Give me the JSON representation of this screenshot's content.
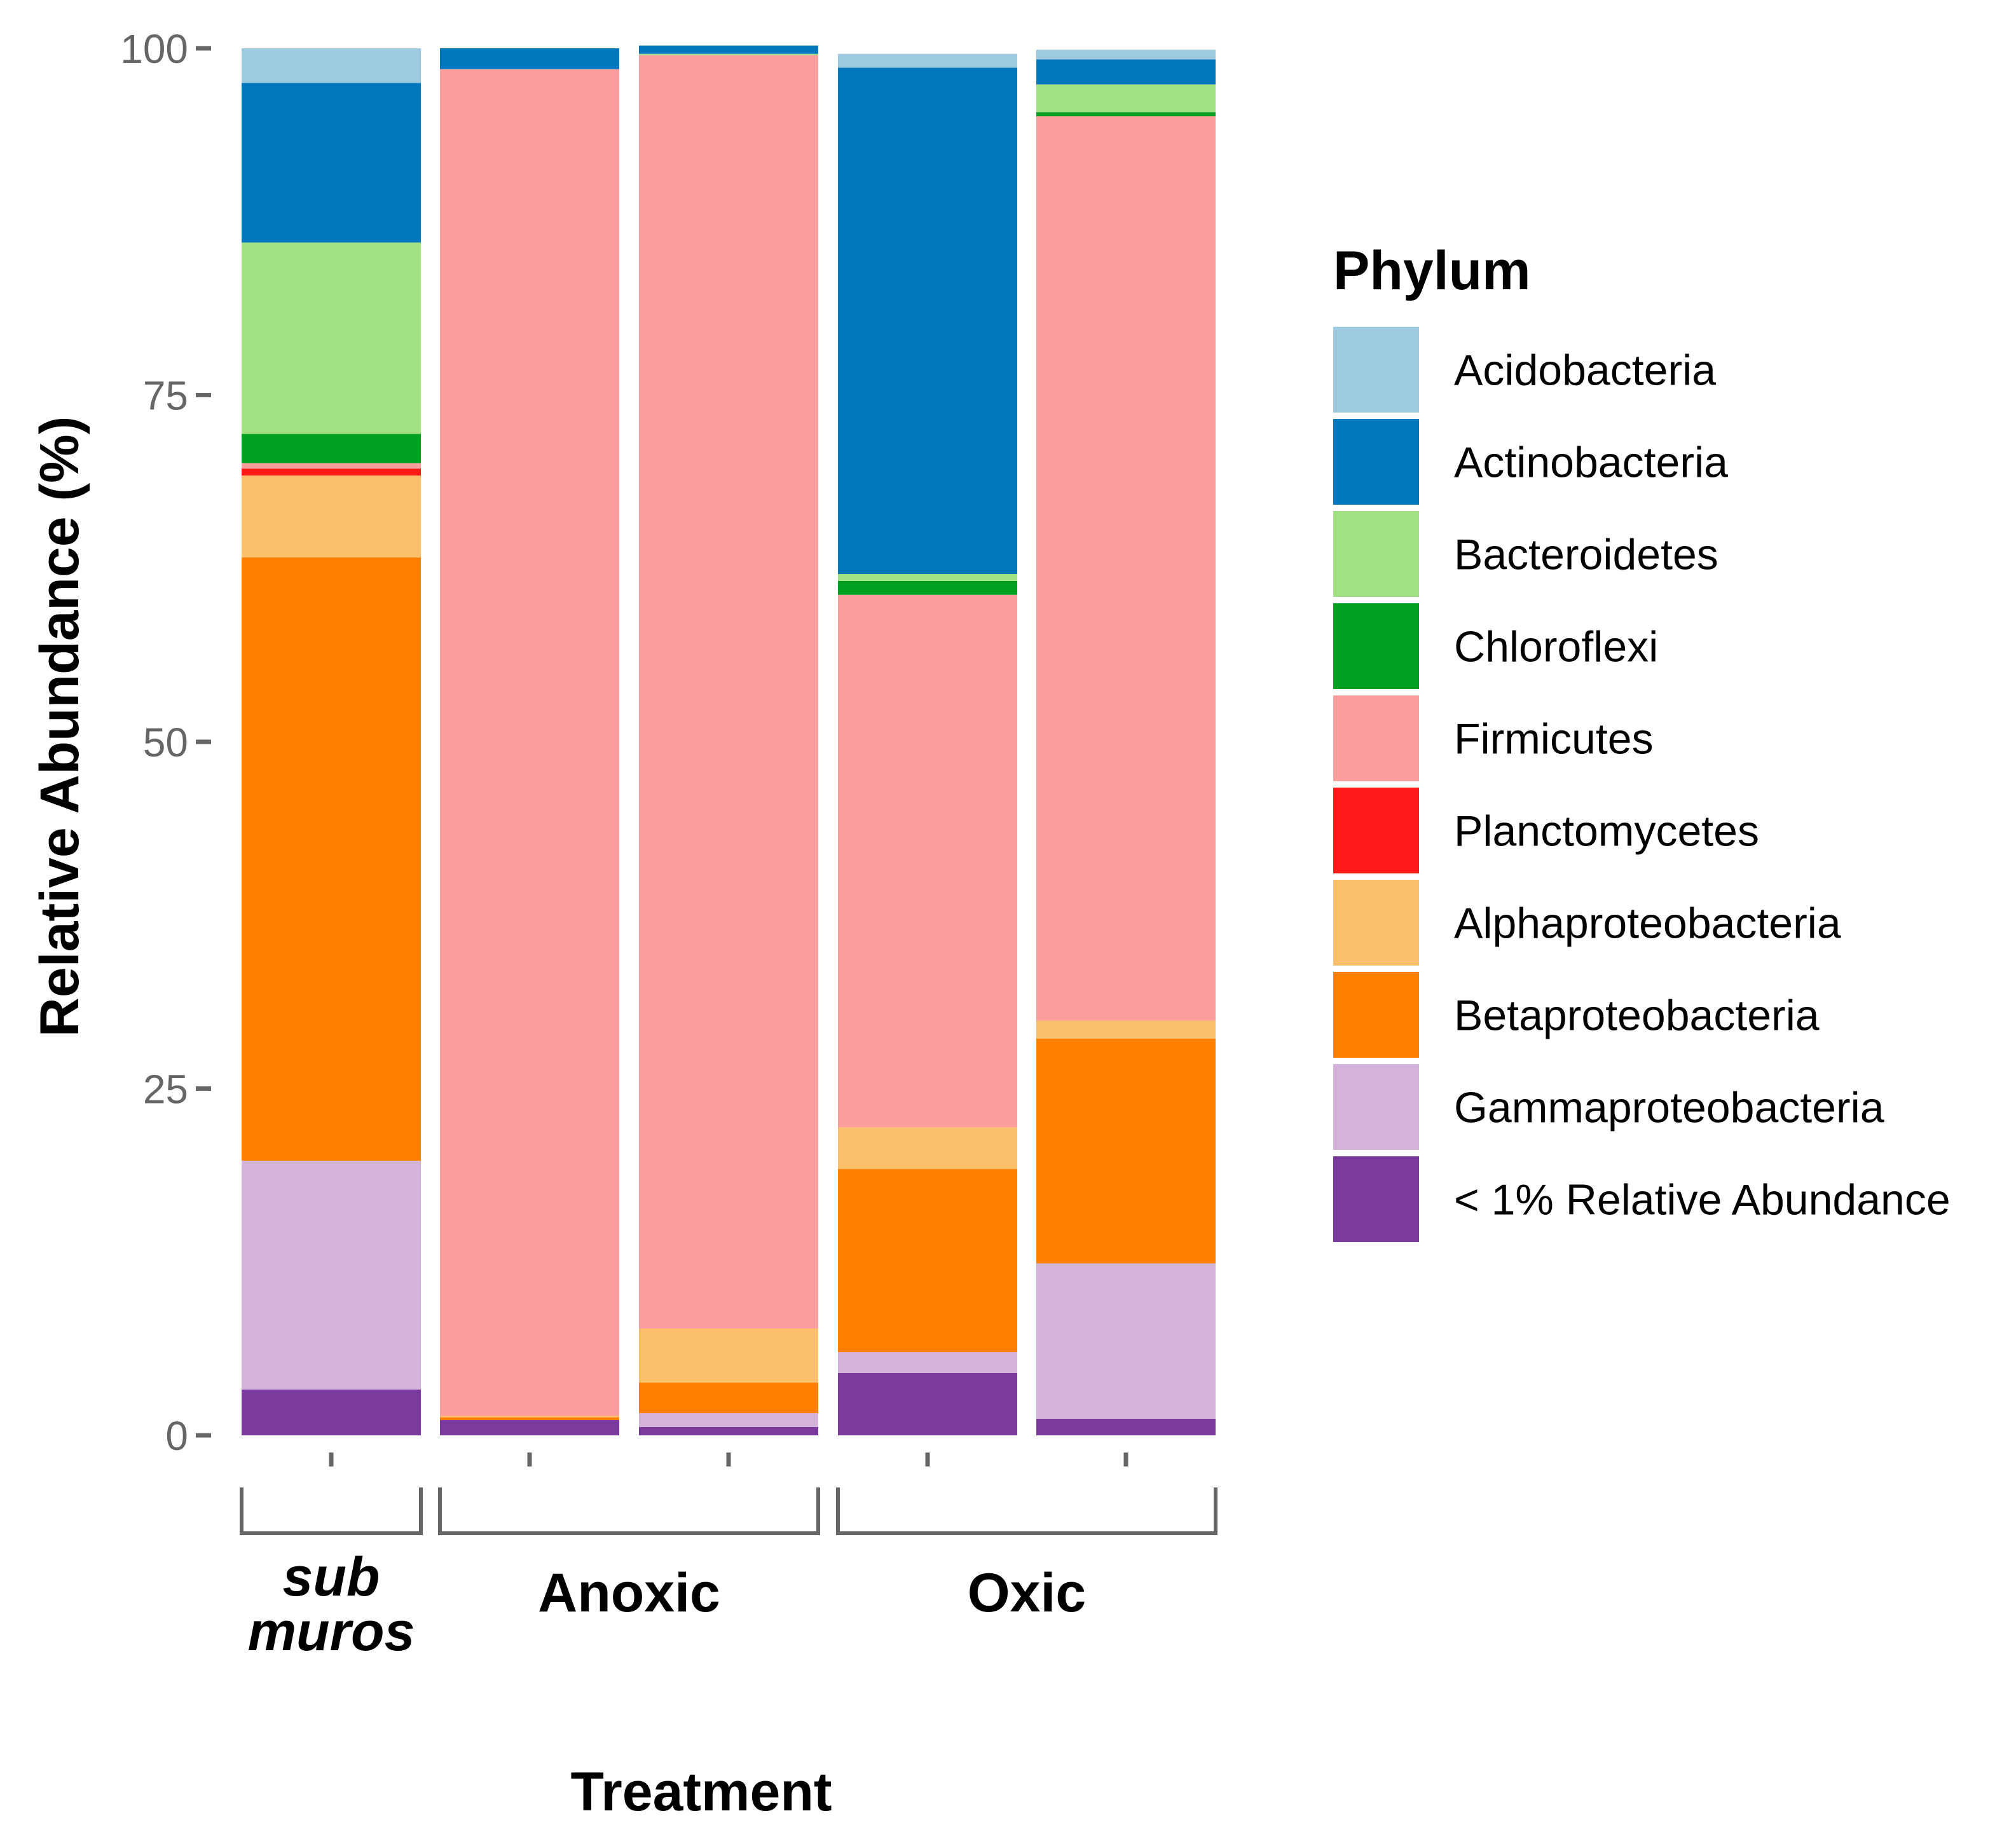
{
  "chart_data": {
    "type": "bar",
    "stacked": true,
    "ylabel": "Relative Abundance (%)",
    "xlabel": "Treatment",
    "ylim": [
      0,
      100
    ],
    "yticks": [
      "0",
      "25",
      "50",
      "75",
      "100"
    ],
    "groups": [
      {
        "label_lines": [
          "sub",
          "muros"
        ],
        "italic": true,
        "bars": [
          0
        ]
      },
      {
        "label_lines": [
          "Anoxic"
        ],
        "italic": false,
        "bars": [
          1,
          2
        ]
      },
      {
        "label_lines": [
          "Oxic"
        ],
        "italic": false,
        "bars": [
          3,
          4
        ]
      }
    ],
    "legend": {
      "title": "Phylum",
      "position": "right"
    },
    "series": [
      {
        "name": "Acidobacteria",
        "color": "#9ecae1",
        "values": [
          2.5,
          0.0,
          0.0,
          1.0,
          0.7
        ]
      },
      {
        "name": "Actinobacteria",
        "color": "#0277bd",
        "values": [
          11.5,
          1.5,
          0.6,
          36.5,
          1.8
        ]
      },
      {
        "name": "Bacteroidetes",
        "color": "#a1e085",
        "values": [
          13.8,
          0.0,
          0.1,
          0.5,
          2.0
        ]
      },
      {
        "name": "Chloroflexi",
        "color": "#00a020",
        "values": [
          2.1,
          0.0,
          0.0,
          1.0,
          0.3
        ]
      },
      {
        "name": "Firmicutes",
        "color": "#fc9e9e",
        "values": [
          0.4,
          97.1,
          91.8,
          38.4,
          65.2
        ]
      },
      {
        "name": "Planctomycetes",
        "color": "#ff1a1a",
        "values": [
          0.5,
          0.0,
          0.0,
          0.0,
          0.0
        ]
      },
      {
        "name": "Alphaproteobacteria",
        "color": "#fcbf6b",
        "values": [
          5.9,
          0.1,
          3.9,
          3.0,
          1.3
        ]
      },
      {
        "name": "Betaproteobacteria",
        "color": "#ff8000",
        "values": [
          43.5,
          0.2,
          2.2,
          13.2,
          16.2
        ]
      },
      {
        "name": "Gammaproteobacteria",
        "color": "#d4b3db",
        "values": [
          16.5,
          0.0,
          1.0,
          1.5,
          11.2
        ]
      },
      {
        "name": "< 1% Relative Abundance",
        "color": "#7b3a9e",
        "values": [
          3.3,
          1.1,
          0.6,
          4.5,
          1.2
        ]
      }
    ]
  }
}
